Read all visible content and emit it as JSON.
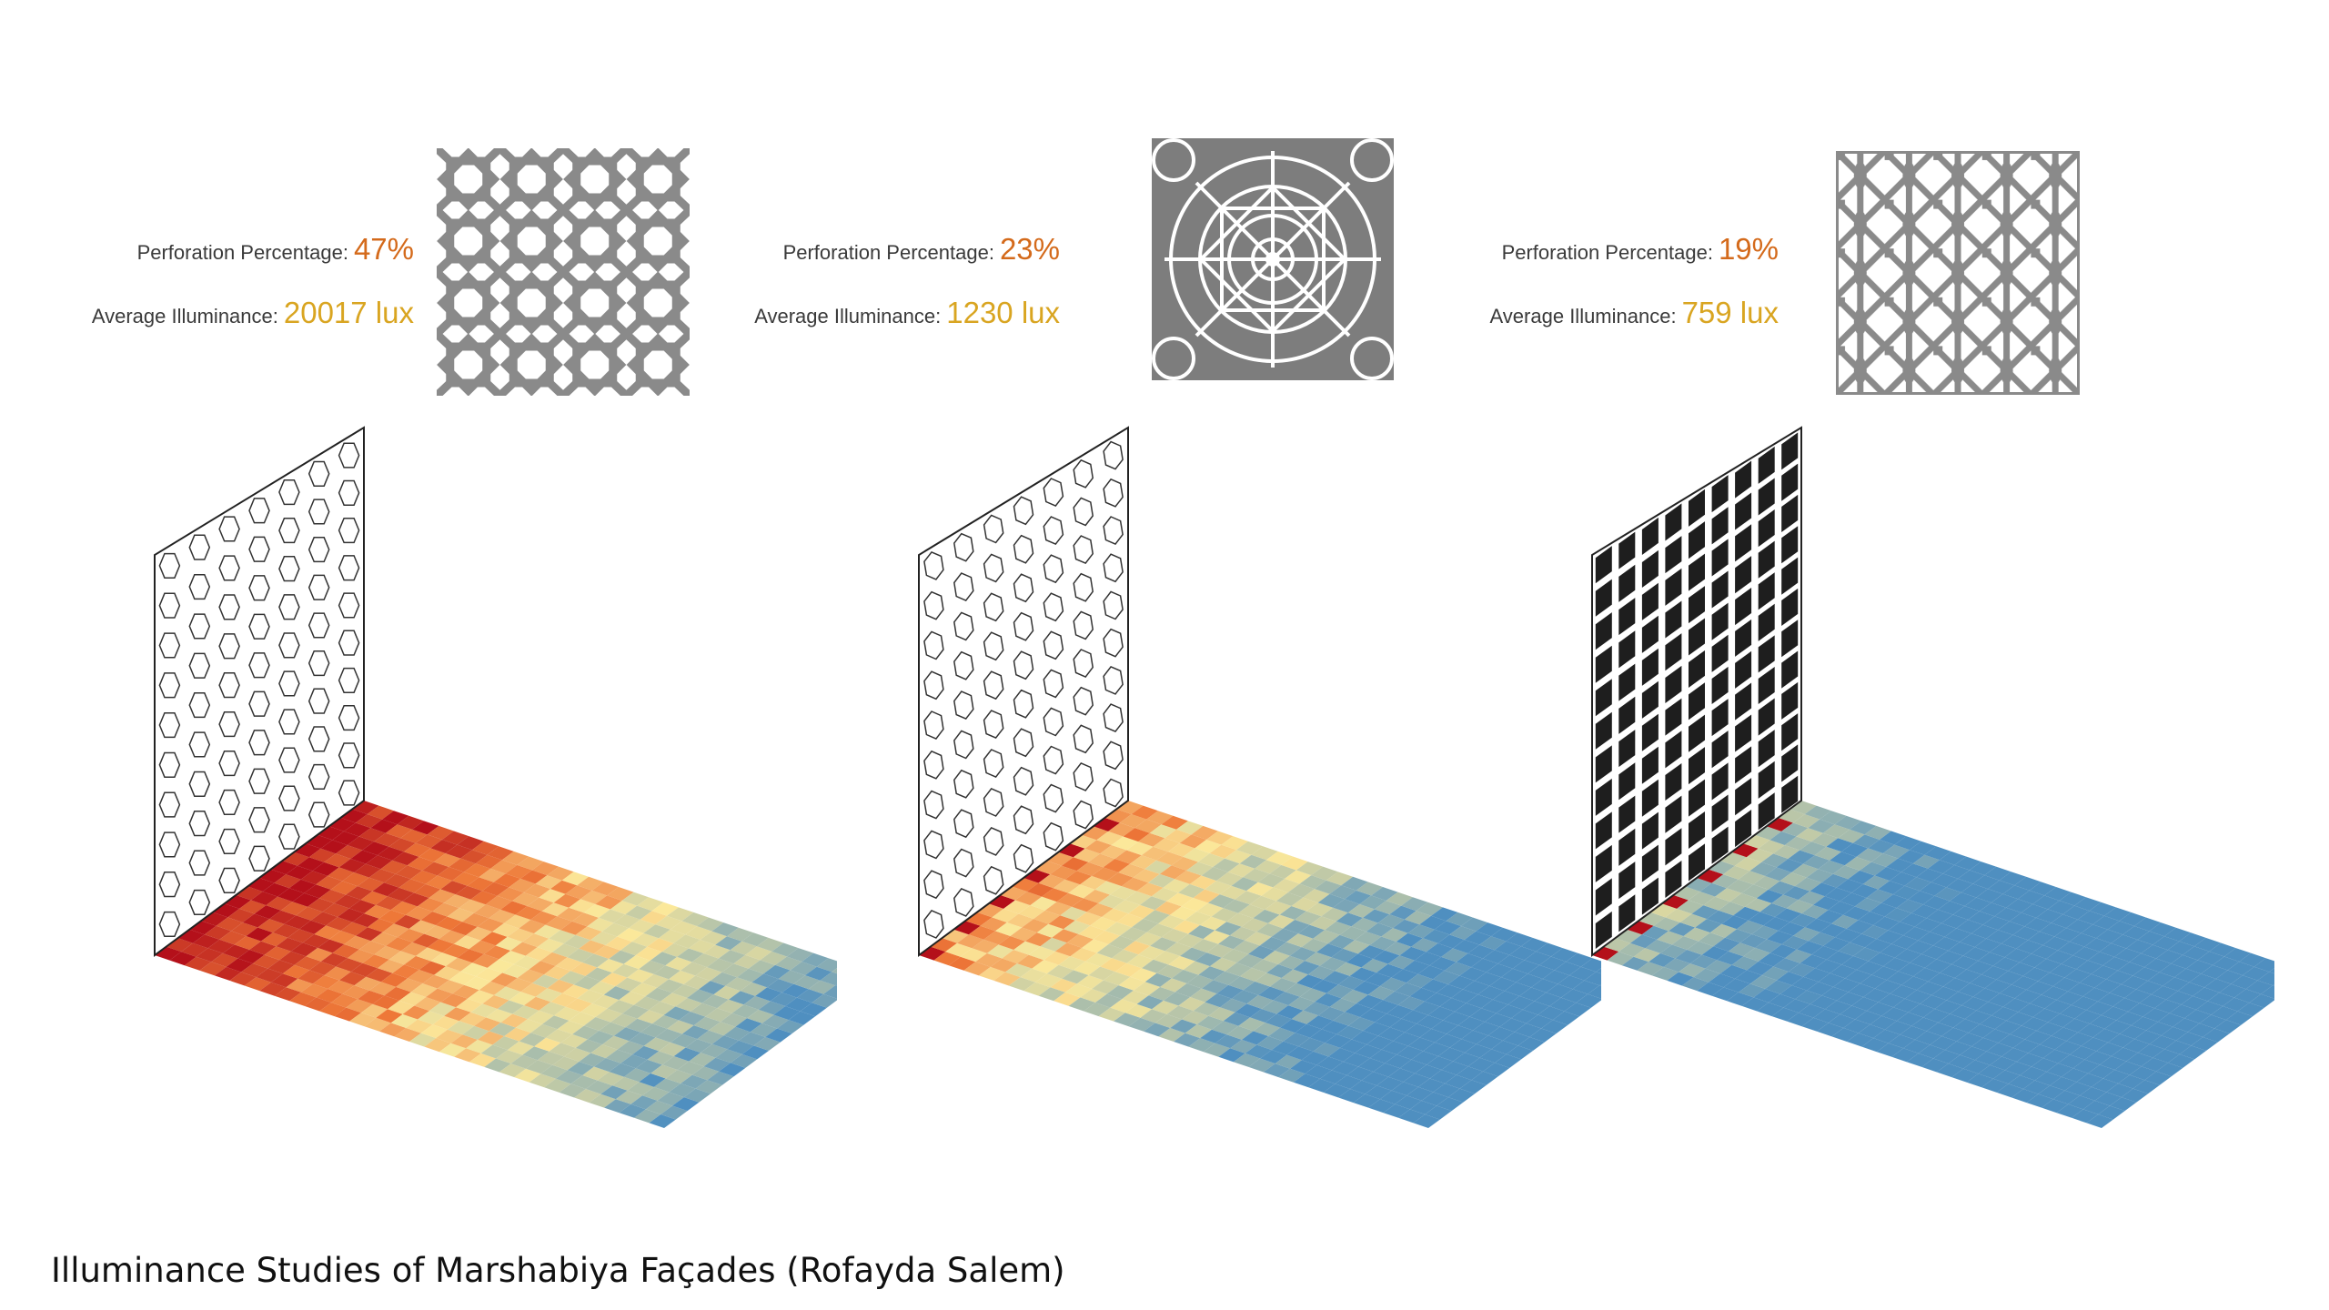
{
  "colors": {
    "perforation_value": "#d46a1b",
    "illuminance_value": "#d9a521",
    "label_text": "#3a3a3a",
    "pattern_gray": "#8a8a8a",
    "heat_high": "#b4101a",
    "heat_mid": "#fbe89a",
    "heat_low": "#4f8fc0"
  },
  "studies": [
    {
      "perforation_label": "Perforation Percentage:",
      "perforation_value": "47%",
      "illuminance_label": "Average Illuminance:",
      "illuminance_value": "20017 lux",
      "pattern_icon": "star-lattice-pattern-icon",
      "heat_level": 0.85
    },
    {
      "perforation_label": "Perforation Percentage:",
      "perforation_value": "23%",
      "illuminance_label": "Average Illuminance:",
      "illuminance_value": "1230 lux",
      "pattern_icon": "rosette-pattern-icon",
      "heat_level": 0.55
    },
    {
      "perforation_label": "Perforation Percentage:",
      "perforation_value": "19%",
      "illuminance_label": "Average Illuminance:",
      "illuminance_value": "759 lux",
      "pattern_icon": "turned-lattice-pattern-icon",
      "heat_level": 0.2
    }
  ],
  "caption": "Illuminance Studies of Marshabiya Façades (Rofayda Salem)"
}
